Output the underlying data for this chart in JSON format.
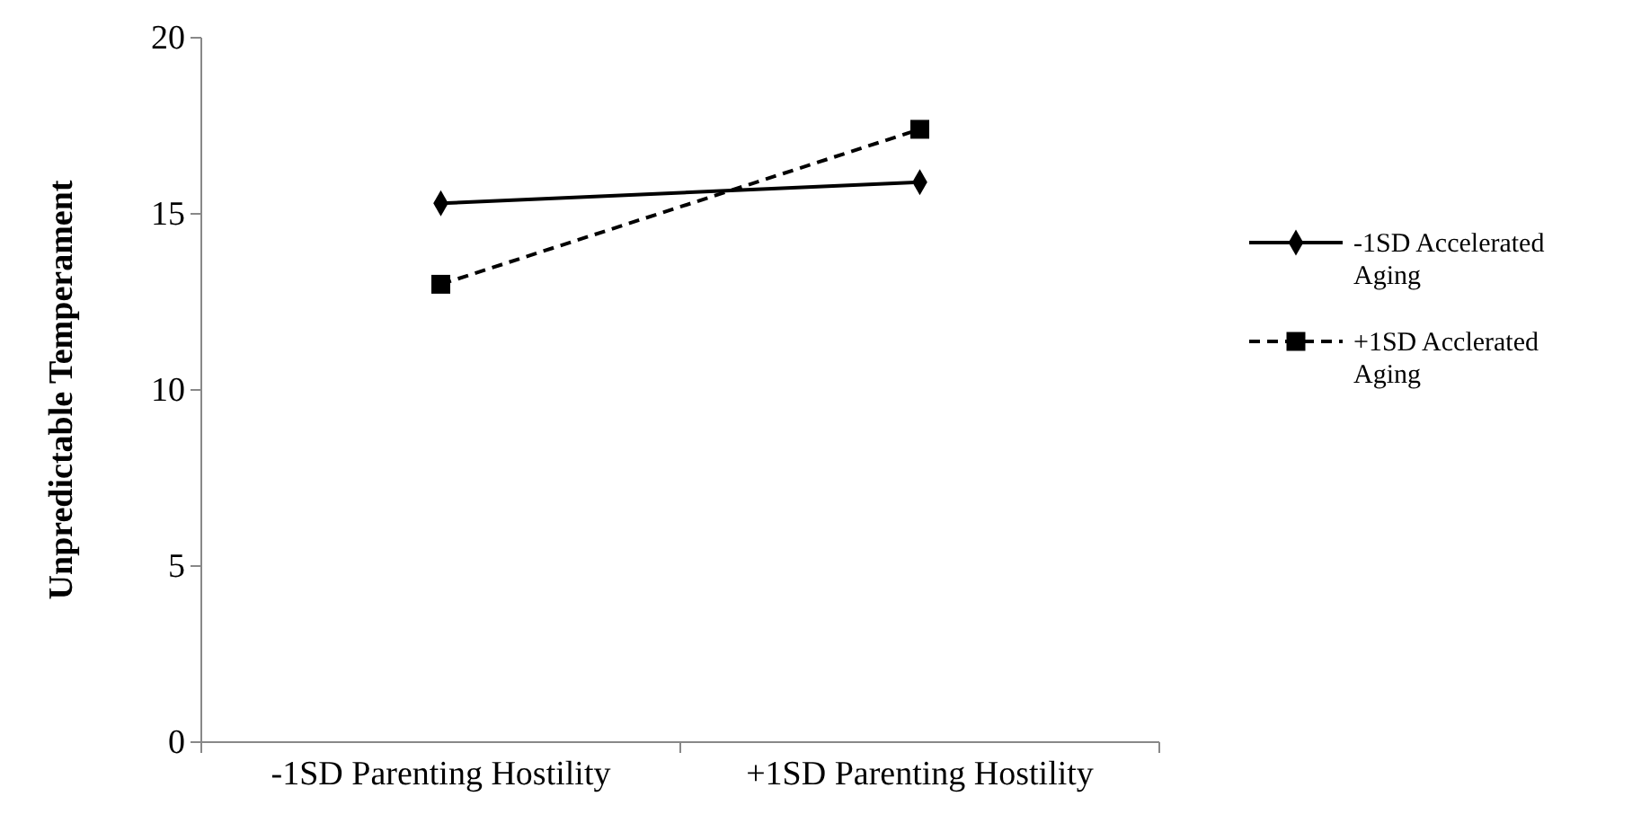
{
  "chart_data": {
    "type": "line",
    "ylabel": "Unpredictable Temperament",
    "categories": [
      "-1SD Parenting Hostility",
      "+1SD Parenting Hostility"
    ],
    "ylim": [
      0,
      20
    ],
    "yticks": [
      0,
      5,
      10,
      15,
      20
    ],
    "grid": false,
    "legend": "right",
    "series": [
      {
        "name": "-1SD Accelerated Aging",
        "color": "#000000",
        "values": [
          15.3,
          15.9
        ],
        "marker": "diamond",
        "line_style": "solid"
      },
      {
        "name": "+1SD Acclerated Aging",
        "color": "#000000",
        "values": [
          13.0,
          17.4
        ],
        "marker": "square",
        "line_style": "dashed"
      }
    ]
  }
}
